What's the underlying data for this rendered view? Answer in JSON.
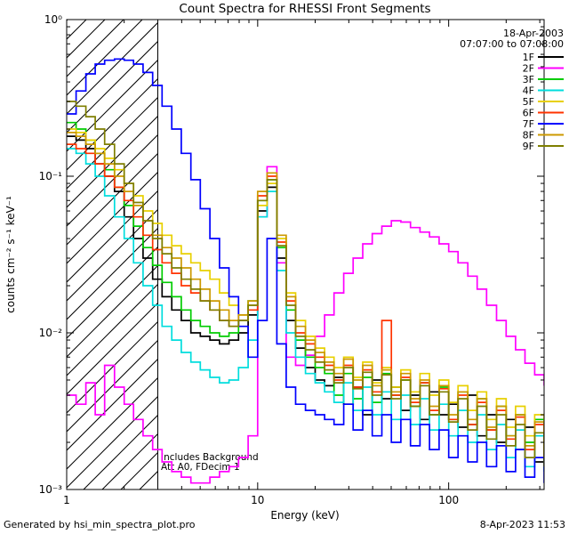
{
  "title": "Count Spectra for RHESSI Front Segments",
  "header": {
    "date": "18-Apr-2003",
    "time_range": "07:07:00 to 07:08:00"
  },
  "annotations": {
    "background": "Includes Background",
    "att": "Att A0, FDecim 1"
  },
  "footer": {
    "left": "Generated by hsi_min_spectra_plot.pro",
    "right": "8-Apr-2023 11:53"
  },
  "axes": {
    "xlabel": "Energy (keV)",
    "ylabel": "counts cm⁻² s⁻¹ keV⁻¹",
    "x_ticks": [
      {
        "v": 1,
        "label": "1"
      },
      {
        "v": 10,
        "label": "10"
      },
      {
        "v": 100,
        "label": "100"
      }
    ],
    "y_ticks": [
      {
        "v": 1,
        "label": "10⁰"
      },
      {
        "v": 0.1,
        "label": "10⁻¹"
      },
      {
        "v": 0.01,
        "label": "10⁻²"
      },
      {
        "v": 0.001,
        "label": "10⁻³"
      }
    ]
  },
  "chart_data": {
    "type": "line",
    "title": "Count Spectra for RHESSI Front Segments",
    "xlabel": "Energy (keV)",
    "ylabel": "counts cm-2 s-1 keV-1",
    "x_scale": "log",
    "y_scale": "log",
    "xlim": [
      1,
      316
    ],
    "ylim": [
      0.001,
      1
    ],
    "grid": false,
    "legend_position": "top-right",
    "hatch_region": {
      "x_min": 1,
      "x_max": 3,
      "style": "diagonal-lines"
    },
    "energies": [
      1.0,
      1.12,
      1.26,
      1.41,
      1.58,
      1.78,
      2.0,
      2.24,
      2.51,
      2.82,
      3.16,
      3.55,
      3.98,
      4.47,
      5.01,
      5.62,
      6.31,
      7.08,
      7.94,
      8.91,
      10.0,
      11.2,
      12.6,
      14.1,
      15.8,
      17.8,
      20.0,
      22.4,
      25.1,
      28.2,
      31.6,
      35.5,
      39.8,
      44.7,
      50.1,
      56.2,
      63.1,
      70.8,
      79.4,
      89.1,
      100,
      112,
      126,
      141,
      158,
      178,
      200,
      224,
      251,
      282,
      316
    ],
    "series": [
      {
        "name": "1F",
        "color": "#000000",
        "values": [
          0.18,
          0.17,
          0.15,
          0.12,
          0.1,
          0.08,
          0.055,
          0.04,
          0.03,
          0.022,
          0.017,
          0.014,
          0.012,
          0.01,
          0.0095,
          0.009,
          0.0085,
          0.009,
          0.01,
          0.013,
          0.06,
          0.085,
          0.03,
          0.012,
          0.008,
          0.006,
          0.005,
          0.0046,
          0.0052,
          0.0035,
          0.0045,
          0.003,
          0.005,
          0.0038,
          0.0045,
          0.0032,
          0.004,
          0.0028,
          0.0042,
          0.003,
          0.0035,
          0.0025,
          0.004,
          0.0022,
          0.003,
          0.002,
          0.0028,
          0.0018,
          0.0025,
          0.0015,
          0.002
        ]
      },
      {
        "name": "2F",
        "color": "#ff00ff",
        "values": [
          0.004,
          0.0035,
          0.0048,
          0.003,
          0.0062,
          0.0045,
          0.0035,
          0.0028,
          0.0022,
          0.0018,
          0.0015,
          0.0013,
          0.0012,
          0.0011,
          0.0011,
          0.0012,
          0.0013,
          0.0014,
          0.0016,
          0.0022,
          0.055,
          0.115,
          0.028,
          0.007,
          0.0062,
          0.0072,
          0.0095,
          0.013,
          0.018,
          0.024,
          0.03,
          0.037,
          0.043,
          0.048,
          0.052,
          0.051,
          0.047,
          0.044,
          0.041,
          0.037,
          0.033,
          0.028,
          0.023,
          0.019,
          0.015,
          0.012,
          0.0095,
          0.0078,
          0.0064,
          0.0054,
          0.0046
        ]
      },
      {
        "name": "3F",
        "color": "#00cc00",
        "values": [
          0.22,
          0.2,
          0.17,
          0.14,
          0.11,
          0.085,
          0.065,
          0.048,
          0.035,
          0.027,
          0.021,
          0.017,
          0.014,
          0.012,
          0.011,
          0.01,
          0.0095,
          0.01,
          0.012,
          0.016,
          0.07,
          0.095,
          0.035,
          0.014,
          0.009,
          0.007,
          0.006,
          0.0055,
          0.004,
          0.0055,
          0.0038,
          0.0052,
          0.0036,
          0.0055,
          0.004,
          0.005,
          0.0034,
          0.0048,
          0.003,
          0.0045,
          0.0028,
          0.0042,
          0.0026,
          0.0038,
          0.0024,
          0.0034,
          0.0022,
          0.003,
          0.002,
          0.0028,
          0.0018
        ]
      },
      {
        "name": "4F",
        "color": "#00dddd",
        "values": [
          0.15,
          0.14,
          0.12,
          0.1,
          0.075,
          0.055,
          0.04,
          0.028,
          0.02,
          0.015,
          0.011,
          0.009,
          0.0075,
          0.0065,
          0.0058,
          0.0052,
          0.0048,
          0.005,
          0.006,
          0.009,
          0.055,
          0.08,
          0.025,
          0.01,
          0.007,
          0.0055,
          0.0048,
          0.0042,
          0.0036,
          0.0048,
          0.0032,
          0.0045,
          0.003,
          0.0042,
          0.0028,
          0.004,
          0.0026,
          0.0038,
          0.0024,
          0.0035,
          0.0022,
          0.0032,
          0.002,
          0.003,
          0.0018,
          0.0026,
          0.0016,
          0.0024,
          0.0014,
          0.0022,
          0.0013
        ]
      },
      {
        "name": "5F",
        "color": "#e8d000",
        "values": [
          0.2,
          0.19,
          0.17,
          0.15,
          0.13,
          0.11,
          0.09,
          0.075,
          0.06,
          0.05,
          0.042,
          0.036,
          0.032,
          0.028,
          0.025,
          0.022,
          0.018,
          0.015,
          0.013,
          0.015,
          0.065,
          0.09,
          0.04,
          0.018,
          0.012,
          0.0095,
          0.008,
          0.007,
          0.006,
          0.007,
          0.0052,
          0.0065,
          0.0048,
          0.006,
          0.0045,
          0.0058,
          0.0042,
          0.0055,
          0.004,
          0.005,
          0.0036,
          0.0046,
          0.0032,
          0.0042,
          0.0028,
          0.0038,
          0.0025,
          0.0034,
          0.0022,
          0.003,
          0.0019
        ]
      },
      {
        "name": "6F",
        "color": "#ff3300",
        "values": [
          0.16,
          0.15,
          0.14,
          0.12,
          0.1,
          0.085,
          0.07,
          0.055,
          0.042,
          0.034,
          0.028,
          0.024,
          0.02,
          0.018,
          0.016,
          0.014,
          0.012,
          0.011,
          0.012,
          0.014,
          0.075,
          0.1,
          0.038,
          0.016,
          0.01,
          0.0085,
          0.007,
          0.0062,
          0.005,
          0.0062,
          0.0045,
          0.0058,
          0.0042,
          0.012,
          0.004,
          0.0052,
          0.0036,
          0.0048,
          0.0032,
          0.0044,
          0.0028,
          0.004,
          0.0026,
          0.0036,
          0.0024,
          0.0032,
          0.0021,
          0.0029,
          0.0018,
          0.0026,
          0.0016
        ]
      },
      {
        "name": "7F",
        "color": "#0000ff",
        "values": [
          0.25,
          0.35,
          0.45,
          0.52,
          0.55,
          0.56,
          0.55,
          0.52,
          0.46,
          0.38,
          0.28,
          0.2,
          0.14,
          0.095,
          0.062,
          0.04,
          0.026,
          0.017,
          0.011,
          0.007,
          0.012,
          0.04,
          0.0085,
          0.0045,
          0.0035,
          0.0032,
          0.003,
          0.0028,
          0.0026,
          0.0035,
          0.0024,
          0.0032,
          0.0022,
          0.003,
          0.002,
          0.0028,
          0.0019,
          0.0026,
          0.0018,
          0.0024,
          0.0016,
          0.0022,
          0.0015,
          0.002,
          0.0014,
          0.0019,
          0.0013,
          0.0018,
          0.0012,
          0.0016,
          0.0011
        ]
      },
      {
        "name": "8F",
        "color": "#cc9900",
        "values": [
          0.19,
          0.18,
          0.16,
          0.14,
          0.12,
          0.1,
          0.08,
          0.065,
          0.052,
          0.042,
          0.035,
          0.03,
          0.026,
          0.022,
          0.019,
          0.016,
          0.014,
          0.012,
          0.013,
          0.016,
          0.08,
          0.105,
          0.042,
          0.017,
          0.011,
          0.009,
          0.0075,
          0.0065,
          0.0055,
          0.0068,
          0.005,
          0.0062,
          0.0046,
          0.0058,
          0.0042,
          0.0055,
          0.0038,
          0.005,
          0.0034,
          0.0046,
          0.003,
          0.0042,
          0.0028,
          0.0038,
          0.0025,
          0.0034,
          0.0022,
          0.003,
          0.0019,
          0.0027,
          0.0017
        ]
      },
      {
        "name": "9F",
        "color": "#7f7f00",
        "values": [
          0.3,
          0.28,
          0.24,
          0.2,
          0.16,
          0.12,
          0.09,
          0.068,
          0.052,
          0.04,
          0.032,
          0.026,
          0.022,
          0.019,
          0.016,
          0.014,
          0.012,
          0.011,
          0.012,
          0.015,
          0.07,
          0.095,
          0.036,
          0.015,
          0.0095,
          0.0078,
          0.0065,
          0.0058,
          0.0048,
          0.006,
          0.0044,
          0.0056,
          0.004,
          0.0054,
          0.0038,
          0.005,
          0.0034,
          0.0046,
          0.003,
          0.0042,
          0.0027,
          0.0038,
          0.0024,
          0.0034,
          0.0021,
          0.003,
          0.0019,
          0.0026,
          0.0016,
          0.0023,
          0.0014
        ]
      }
    ]
  }
}
